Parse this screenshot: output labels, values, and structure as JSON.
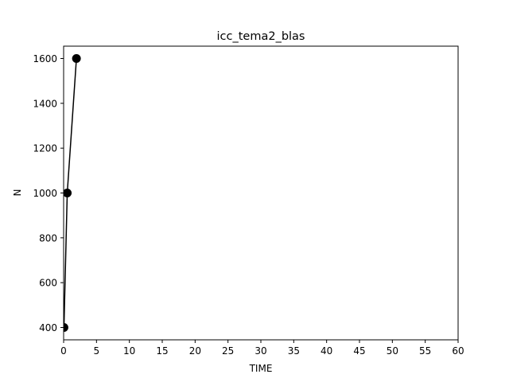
{
  "chart_data": {
    "type": "line",
    "title": "icc_tema2_blas",
    "xlabel": "TIME",
    "ylabel": "N",
    "xlim": [
      0,
      60
    ],
    "ylim": [
      345,
      1655
    ],
    "xticks": [
      0,
      5,
      10,
      15,
      20,
      25,
      30,
      35,
      40,
      45,
      50,
      55,
      60
    ],
    "yticks": [
      400,
      600,
      800,
      1000,
      1200,
      1400,
      1600
    ],
    "grid": false,
    "series": [
      {
        "x": [
          0.05,
          0.55,
          1.95
        ],
        "y": [
          400,
          1000,
          1600
        ],
        "color": "#000000",
        "marker": "circle"
      }
    ]
  }
}
